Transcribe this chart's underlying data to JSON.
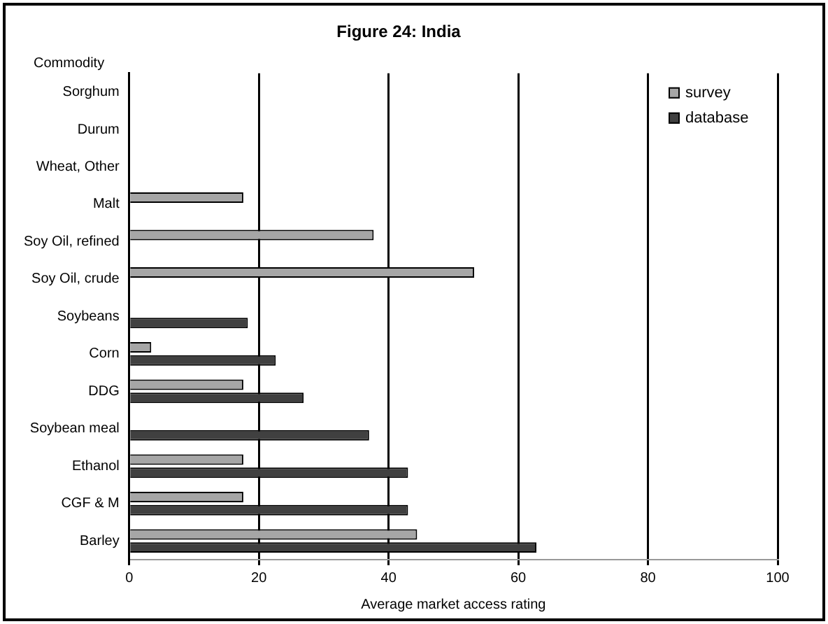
{
  "chart_data": {
    "type": "bar",
    "orientation": "horizontal",
    "title": "Figure 24: India",
    "xlabel": "Average market access rating",
    "ylabel": "Commodity",
    "categories": [
      "Sorghum",
      "Durum",
      "Wheat, Other",
      "Malt",
      "Soy Oil, refined",
      "Soy Oil, crude",
      "Soybeans",
      "Corn",
      "DDG",
      "Soybean meal",
      "Ethanol",
      "CGF & M",
      "Barley"
    ],
    "series": [
      {
        "name": "survey",
        "color": "#a6a6a6",
        "values": [
          null,
          null,
          null,
          17.6,
          37.7,
          53.2,
          null,
          3.4,
          17.6,
          null,
          17.6,
          17.6,
          44.4
        ]
      },
      {
        "name": "database",
        "color": "#404040",
        "values": [
          null,
          null,
          null,
          null,
          null,
          null,
          18.3,
          22.6,
          26.9,
          37,
          43,
          43,
          62.8
        ]
      }
    ],
    "xlim": [
      0,
      100
    ],
    "xticks": [
      0,
      20,
      40,
      60,
      80,
      100
    ],
    "grid": "x",
    "legend": "top right"
  }
}
